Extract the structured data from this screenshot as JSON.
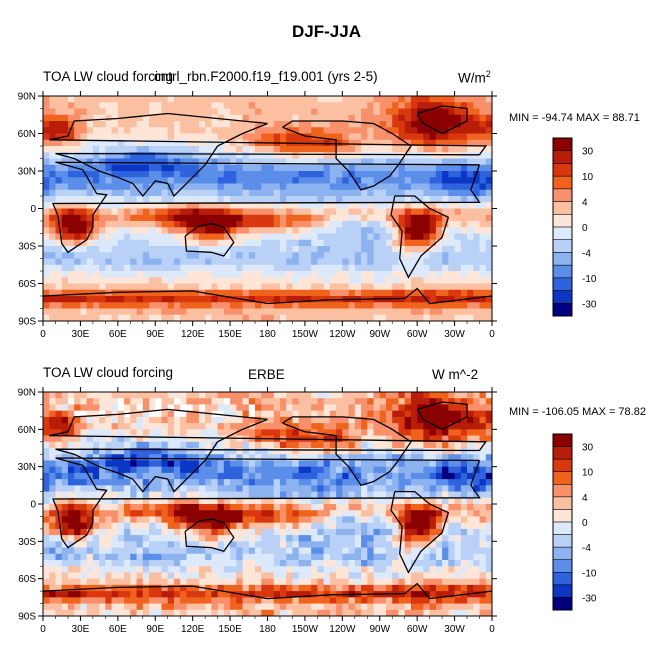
{
  "title": "DJF-JJA",
  "chart_data": [
    {
      "type": "heatmap",
      "left_label": "TOA LW cloud forcing",
      "center_label": "cntrl_rbn.F2000.f19_f19.001 (yrs 2-5)",
      "units_base": "W/m",
      "units_sup": "2",
      "minmax": "MIN = -94.74 MAX =  88.71",
      "min": -94.74,
      "max": 88.71,
      "x_tick_labels": [
        "0",
        "30E",
        "60E",
        "90E",
        "120E",
        "150E",
        "180",
        "150W",
        "120W",
        "90W",
        "60W",
        "30W",
        "0"
      ],
      "y_tick_labels": [
        "90N",
        "60N",
        "30N",
        "0",
        "30S",
        "60S",
        "90S"
      ],
      "colorbar_labels": [
        "30",
        "10",
        "4",
        "0",
        "-4",
        "-10",
        "-30"
      ]
    },
    {
      "type": "heatmap",
      "left_label": "TOA LW cloud forcing",
      "center_label": "ERBE",
      "units_base": "W m^-2",
      "units_sup": "",
      "minmax": "MIN = -106.05 MAX =  78.82",
      "min": -106.05,
      "max": 78.82,
      "x_tick_labels": [
        "0",
        "30E",
        "60E",
        "90E",
        "120E",
        "150E",
        "180",
        "150W",
        "120W",
        "90W",
        "60W",
        "30W",
        "0"
      ],
      "y_tick_labels": [
        "90N",
        "60N",
        "30N",
        "0",
        "30S",
        "60S",
        "90S"
      ],
      "colorbar_labels": [
        "30",
        "10",
        "4",
        "0",
        "-4",
        "-10",
        "-30"
      ]
    }
  ],
  "colors": {
    "levels": [
      "#8b0000",
      "#b81d0a",
      "#d9380f",
      "#f0631c",
      "#f8916b",
      "#fbbfa1",
      "#fde6d8",
      "#dce9fb",
      "#b9d0f7",
      "#8db2f0",
      "#5b8ee8",
      "#2f63de",
      "#0c36c4",
      "#000080"
    ]
  }
}
